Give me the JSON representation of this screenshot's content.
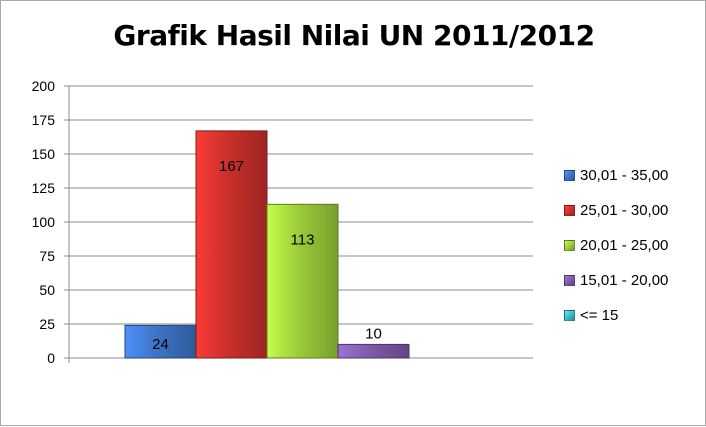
{
  "chart_data": {
    "type": "bar",
    "title": "Grafik Hasil Nilai UN 2011/2012",
    "xlabel": "",
    "ylabel": "",
    "ylim": [
      0,
      200
    ],
    "yticks": [
      "0",
      "25",
      "50",
      "75",
      "100",
      "125",
      "150",
      "175",
      "200"
    ],
    "grid": true,
    "legend_position": "right",
    "series": [
      {
        "name": "30,01 - 35,00",
        "value": 24,
        "label": "24",
        "color": "#3e73c6"
      },
      {
        "name": "25,01 - 30,00",
        "value": 167,
        "label": "167",
        "color": "#c9302c"
      },
      {
        "name": "20,01 - 25,00",
        "value": 113,
        "label": "113",
        "color": "#9ccb3a"
      },
      {
        "name": "15,01 - 20,00",
        "value": 10,
        "label": "10",
        "color": "#7e5aa8"
      },
      {
        "name": "<= 15",
        "value": 0,
        "label": "",
        "color": "#3fb7c9"
      }
    ]
  }
}
